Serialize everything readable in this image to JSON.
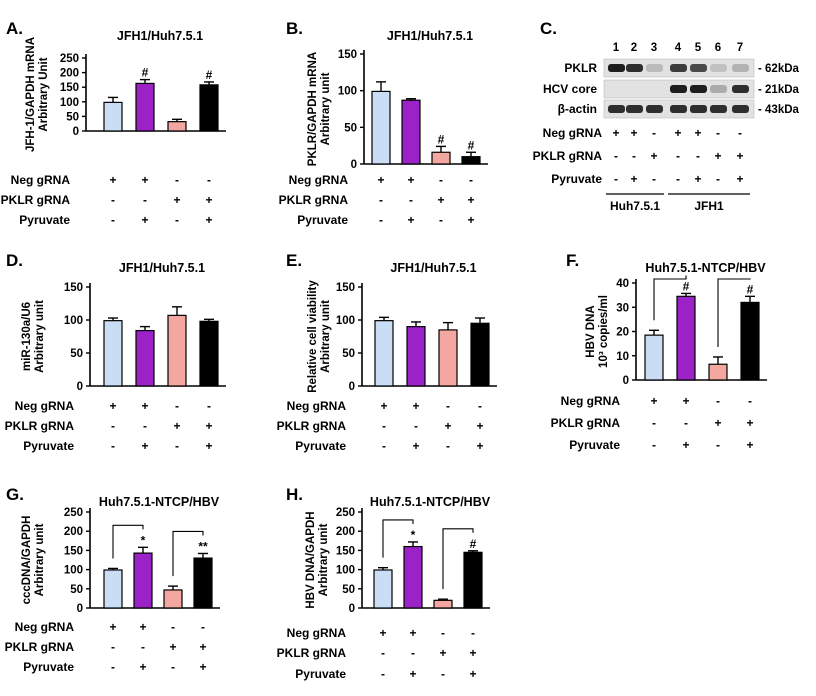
{
  "figure": {
    "colors": {
      "neg": "#c9def4",
      "pklr": "#9a22c6",
      "pyr": "#f3a7a0",
      "both": "#000000",
      "axis": "#000000"
    },
    "condition_rows": [
      "Neg gRNA",
      "PKLR gRNA",
      "Pyruvate"
    ],
    "conditions": [
      [
        "+",
        "+",
        "-",
        "-"
      ],
      [
        "-",
        "-",
        "+",
        "+"
      ],
      [
        "-",
        "+",
        "-",
        "+"
      ]
    ]
  },
  "chart_data": [
    {
      "id": "A",
      "panel_label": "A.",
      "type": "bar",
      "title": "JFH1/Huh7.5.1",
      "ylabel": [
        "JFH-1/GAPDH mRNA",
        "Arbitrary Unit"
      ],
      "ylim": [
        0,
        250
      ],
      "yticks": [
        0,
        50,
        100,
        150,
        200,
        250
      ],
      "values": [
        98,
        163,
        32,
        158
      ],
      "errors": [
        17,
        13,
        8,
        10
      ],
      "marks": [
        "",
        "#",
        "",
        "#"
      ],
      "brackets": []
    },
    {
      "id": "B",
      "panel_label": "B.",
      "type": "bar",
      "title": "JFH1/Huh7.5.1",
      "ylabel": [
        "PKLR/GAPDH mRNA",
        "Arbitrary unit"
      ],
      "ylim": [
        0,
        150
      ],
      "yticks": [
        0,
        50,
        100,
        150
      ],
      "values": [
        99,
        87,
        16,
        10
      ],
      "errors": [
        13,
        2,
        8,
        6
      ],
      "marks": [
        "",
        "",
        "#",
        "#"
      ],
      "brackets": []
    },
    {
      "id": "D",
      "panel_label": "D.",
      "type": "bar",
      "title": "JFH1/Huh7.5.1",
      "ylabel": [
        "miR-130a/U6",
        "Arbitrary unit"
      ],
      "ylim": [
        0,
        150
      ],
      "yticks": [
        0,
        50,
        100,
        150
      ],
      "values": [
        99,
        84,
        107,
        98
      ],
      "errors": [
        4,
        6,
        13,
        3
      ],
      "marks": [
        "",
        "",
        "",
        ""
      ],
      "brackets": []
    },
    {
      "id": "E",
      "panel_label": "E.",
      "type": "bar",
      "title": "JFH1/Huh7.5.1",
      "ylabel": [
        "Relative cell viability",
        "Arbitrary unit"
      ],
      "ylim": [
        0,
        150
      ],
      "yticks": [
        0,
        50,
        100,
        150
      ],
      "values": [
        99,
        90,
        85,
        95
      ],
      "errors": [
        5,
        7,
        11,
        8
      ],
      "marks": [
        "",
        "",
        "",
        ""
      ],
      "brackets": []
    },
    {
      "id": "F",
      "panel_label": "F.",
      "type": "bar",
      "title": "Huh7.5.1-NTCP/HBV",
      "ylabel": [
        "HBV DNA",
        "10³ copies/ml"
      ],
      "ylim": [
        0,
        40
      ],
      "yticks": [
        0,
        10,
        20,
        30,
        40
      ],
      "values": [
        18.5,
        34.5,
        6.5,
        32
      ],
      "errors": [
        2,
        1.2,
        3,
        2.5
      ],
      "marks": [
        "",
        "#",
        "",
        "#"
      ],
      "brackets": [
        [
          0,
          1
        ],
        [
          2,
          3
        ]
      ]
    },
    {
      "id": "G",
      "panel_label": "G.",
      "type": "bar",
      "title": "Huh7.5.1-NTCP/HBV",
      "ylabel": [
        "cccDNA/GAPDH",
        "Arbitrary unit"
      ],
      "ylim": [
        0,
        250
      ],
      "yticks": [
        0,
        50,
        100,
        150,
        200,
        250
      ],
      "values": [
        99,
        143,
        47,
        130
      ],
      "errors": [
        4,
        15,
        10,
        12
      ],
      "marks": [
        "",
        "*",
        "",
        "**"
      ],
      "brackets": [
        [
          0,
          1
        ],
        [
          2,
          3
        ]
      ]
    },
    {
      "id": "H",
      "panel_label": "H.",
      "type": "bar",
      "title": "Huh7.5.1-NTCP/HBV",
      "ylabel": [
        "HBV DNA/GAPDH",
        "Arbitrary unit"
      ],
      "ylim": [
        0,
        250
      ],
      "yticks": [
        0,
        50,
        100,
        150,
        200,
        250
      ],
      "values": [
        99,
        160,
        20,
        145
      ],
      "errors": [
        6,
        12,
        3,
        4
      ],
      "marks": [
        "",
        "*",
        "",
        "#"
      ],
      "brackets": [
        [
          0,
          1
        ],
        [
          2,
          3
        ]
      ]
    }
  ],
  "blot": {
    "panel_label": "C.",
    "lanes": [
      "1",
      "2",
      "3",
      "4",
      "5",
      "6",
      "7"
    ],
    "rows": [
      {
        "label": "PKLR",
        "size": "- 62kDa",
        "intensity": [
          0.95,
          0.9,
          0.25,
          0.85,
          0.8,
          0.2,
          0.3
        ]
      },
      {
        "label": "HCV core",
        "size": "- 21kDa",
        "intensity": [
          0,
          0,
          0,
          0.95,
          0.95,
          0.35,
          0.9
        ]
      },
      {
        "label": "β-actin",
        "size": "- 43kDa",
        "intensity": [
          0.9,
          0.9,
          0.9,
          0.9,
          0.9,
          0.9,
          0.9
        ]
      }
    ],
    "cond_rows": [
      "Neg gRNA",
      "PKLR gRNA",
      "Pyruvate"
    ],
    "conds": [
      [
        "+",
        "+",
        "-",
        "+",
        "+",
        "-",
        "-"
      ],
      [
        "-",
        "-",
        "+",
        "-",
        "-",
        "+",
        "+"
      ],
      [
        "-",
        "+",
        "-",
        "-",
        "+",
        "-",
        "+"
      ]
    ],
    "groups": [
      {
        "label": "Huh7.5.1",
        "from": 0,
        "to": 2
      },
      {
        "label": "JFH1",
        "from": 3,
        "to": 6
      }
    ]
  }
}
